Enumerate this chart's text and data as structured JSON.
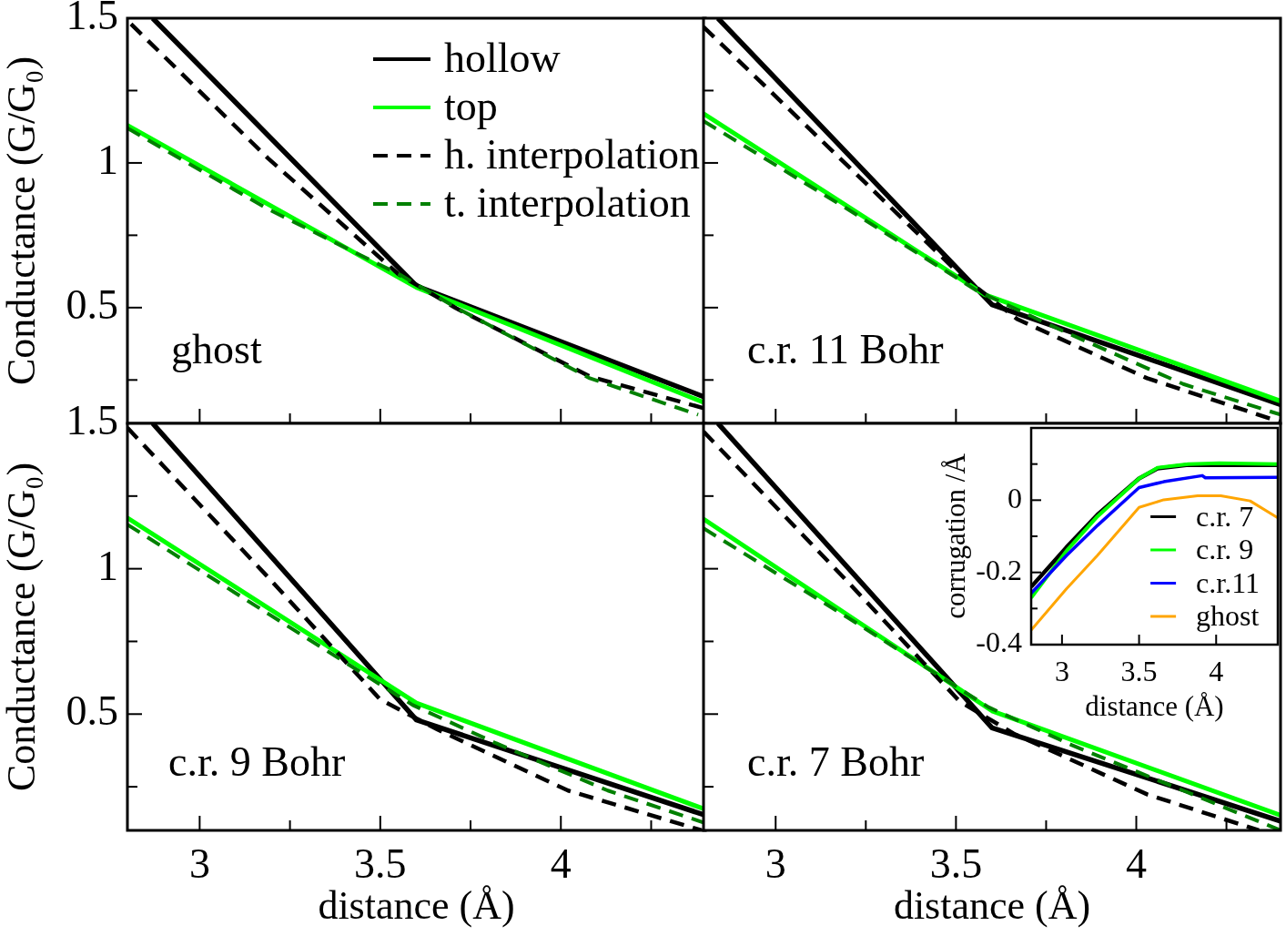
{
  "chart_data": [
    {
      "type": "line",
      "ylabel": "Conductance (G/G₀)",
      "xlim": [
        2.8,
        4.4
      ],
      "ylim": [
        0.1,
        1.5
      ],
      "xticks": [
        3,
        {
          "value": 3.25,
          "label": null
        },
        3.5,
        {
          "value": 3.75,
          "label": null
        },
        4,
        {
          "value": 4.25,
          "label": null
        }
      ],
      "yticks": [
        {
          "value": 0.25,
          "label": null
        },
        0.5,
        {
          "value": 0.75,
          "label": null
        },
        1,
        {
          "value": 1.25,
          "label": null
        },
        1.5
      ],
      "tick_labels": "y",
      "legend": "top right",
      "marker": "none",
      "annotations": [
        "ghost"
      ],
      "series": [
        {
          "name": "hollow",
          "color": "#000000",
          "line_style": "solid",
          "x": [
            2.87,
            3.6,
            4.4
          ],
          "values": [
            1.5,
            0.575,
            0.19
          ]
        },
        {
          "name": "top",
          "color": "#00ff00",
          "line_style": "solid",
          "x": [
            2.8,
            3.6,
            4.4
          ],
          "values": [
            1.13,
            0.57,
            0.17
          ]
        },
        {
          "name": "h. interpolation",
          "color": "#000000",
          "line_style": "dashed",
          "x": [
            2.81,
            3.19,
            3.55,
            3.71,
            4.08,
            4.4
          ],
          "values": [
            1.48,
            1.015,
            0.616,
            0.498,
            0.262,
            0.151
          ]
        },
        {
          "name": "t. interpolation",
          "color": "#008000",
          "line_style": "dashed",
          "x": [
            2.8,
            3.19,
            3.56,
            3.71,
            4.08,
            4.38
          ],
          "values": [
            1.12,
            0.84,
            0.61,
            0.5,
            0.256,
            0.13
          ]
        }
      ]
    },
    {
      "type": "line",
      "xlim": [
        2.8,
        4.4
      ],
      "ylim": [
        0.1,
        1.5
      ],
      "xticks": [
        3,
        {
          "value": 3.25,
          "label": null
        },
        3.5,
        {
          "value": 3.75,
          "label": null
        },
        4,
        {
          "value": 4.25,
          "label": null
        }
      ],
      "yticks": [
        {
          "value": 0.25,
          "label": null
        },
        0.5,
        {
          "value": 0.75,
          "label": null
        },
        1,
        {
          "value": 1.25,
          "label": null
        },
        1.5
      ],
      "tick_labels": false,
      "marker": "none",
      "annotations": [
        "c.r. 11 Bohr"
      ],
      "series": [
        {
          "color": "#000000",
          "line_style": "solid",
          "x": [
            2.84,
            3.6,
            4.4
          ],
          "values": [
            1.5,
            0.51,
            0.165
          ]
        },
        {
          "color": "#00ff00",
          "line_style": "solid",
          "x": [
            2.8,
            3.58,
            4.4
          ],
          "values": [
            1.17,
            0.545,
            0.177
          ]
        },
        {
          "color": "#000000",
          "line_style": "dashed",
          "x": [
            2.8,
            3.2,
            3.51,
            3.67,
            4.03,
            4.4
          ],
          "values": [
            1.47,
            0.99,
            0.616,
            0.46,
            0.256,
            0.105
          ]
        },
        {
          "color": "#008000",
          "line_style": "dashed",
          "x": [
            2.8,
            3.2,
            3.56,
            3.82,
            4.13,
            4.4
          ],
          "values": [
            1.145,
            0.84,
            0.557,
            0.406,
            0.236,
            0.13
          ]
        }
      ]
    },
    {
      "type": "line",
      "xlabel": "distance (Å)",
      "ylabel": "Conductance (G/G₀)",
      "xlim": [
        2.8,
        4.4
      ],
      "ylim": [
        0.1,
        1.5
      ],
      "xticks": [
        3,
        {
          "value": 3.25,
          "label": null
        },
        3.5,
        {
          "value": 3.75,
          "label": null
        },
        4,
        {
          "value": 4.25,
          "label": null
        }
      ],
      "yticks": [
        {
          "value": 0.25,
          "label": null
        },
        0.5,
        {
          "value": 0.75,
          "label": null
        },
        1,
        {
          "value": 1.25,
          "label": null
        },
        1.5
      ],
      "marker": "none",
      "annotations": [
        "c.r. 9 Bohr"
      ],
      "series": [
        {
          "color": "#000000",
          "line_style": "solid",
          "x": [
            2.87,
            3.6,
            4.4
          ],
          "values": [
            1.5,
            0.48,
            0.152
          ]
        },
        {
          "color": "#00ff00",
          "line_style": "solid",
          "x": [
            2.8,
            3.6,
            4.4
          ],
          "values": [
            1.175,
            0.538,
            0.172
          ]
        },
        {
          "color": "#000000",
          "line_style": "dashed",
          "x": [
            2.8,
            3.19,
            3.5,
            3.66,
            4.02,
            4.39
          ],
          "values": [
            1.485,
            0.97,
            0.55,
            0.446,
            0.237,
            0.1
          ]
        },
        {
          "color": "#008000",
          "line_style": "dashed",
          "x": [
            2.8,
            3.19,
            3.59,
            3.82,
            4.13,
            4.4
          ],
          "values": [
            1.152,
            0.845,
            0.531,
            0.4,
            0.237,
            0.125
          ]
        }
      ]
    },
    {
      "type": "line",
      "xlabel": "distance (Å)",
      "xlim": [
        2.8,
        4.4
      ],
      "ylim": [
        0.1,
        1.5
      ],
      "xticks": [
        3,
        {
          "value": 3.25,
          "label": null
        },
        3.5,
        {
          "value": 3.75,
          "label": null
        },
        4,
        {
          "value": 4.25,
          "label": null
        }
      ],
      "yticks": [
        {
          "value": 0.25,
          "label": null
        },
        0.5,
        {
          "value": 0.75,
          "label": null
        },
        1,
        {
          "value": 1.25,
          "label": null
        },
        1.5
      ],
      "tick_labels": "x",
      "marker": "none",
      "annotations": [
        "c.r. 7 Bohr"
      ],
      "series": [
        {
          "color": "#000000",
          "line_style": "solid",
          "x": [
            2.84,
            3.6,
            4.4
          ],
          "values": [
            1.5,
            0.453,
            0.132
          ]
        },
        {
          "color": "#00ff00",
          "line_style": "solid",
          "x": [
            2.8,
            3.6,
            4.4
          ],
          "values": [
            1.171,
            0.511,
            0.152
          ]
        },
        {
          "color": "#000000",
          "line_style": "dashed",
          "x": [
            2.8,
            3.2,
            3.51,
            3.66,
            4.03,
            4.34
          ],
          "values": [
            1.472,
            0.955,
            0.544,
            0.433,
            0.224,
            0.1
          ]
        },
        {
          "color": "#008000",
          "line_style": "dashed",
          "x": [
            2.8,
            3.2,
            3.59,
            3.82,
            4.13,
            4.4
          ],
          "values": [
            1.139,
            0.832,
            0.524,
            0.394,
            0.237,
            0.1
          ]
        }
      ]
    },
    {
      "type": "line",
      "xlabel": "distance (Å)",
      "ylabel": "corrugation /Å",
      "xlim": [
        2.8,
        4.4
      ],
      "ylim": [
        -0.4,
        0.2
      ],
      "xticks": [
        3,
        3.5,
        4
      ],
      "yticks": [
        -0.4,
        {
          "value": -0.3,
          "label": null
        },
        -0.2,
        {
          "value": -0.1,
          "label": null
        },
        0,
        {
          "value": 0.1,
          "label": null
        }
      ],
      "legend": "bottom right",
      "marker": "none",
      "series": [
        {
          "name": "c.r. 7",
          "color": "#000000",
          "line_style": "solid",
          "x": [
            2.8,
            3.03,
            3.23,
            3.5,
            3.62,
            3.82,
            4.4
          ],
          "values": [
            -0.24,
            -0.13,
            -0.04,
            0.06,
            0.088,
            0.098,
            0.097
          ]
        },
        {
          "name": "c.r. 9",
          "color": "#00ff00",
          "line_style": "solid",
          "x": [
            2.8,
            3.03,
            3.23,
            3.5,
            3.62,
            3.82,
            4.02,
            4.4
          ],
          "values": [
            -0.27,
            -0.14,
            -0.045,
            0.06,
            0.09,
            0.1,
            0.102,
            0.1
          ]
        },
        {
          "name": "c.r.11",
          "color": "#0000ff",
          "line_style": "solid",
          "x": [
            2.8,
            3.03,
            3.23,
            3.5,
            3.66,
            3.91,
            3.93,
            4.4
          ],
          "values": [
            -0.258,
            -0.153,
            -0.07,
            0.035,
            0.051,
            0.068,
            0.062,
            0.063
          ]
        },
        {
          "name": "ghost",
          "color": "#ffa500",
          "line_style": "solid",
          "x": [
            2.8,
            3.03,
            3.23,
            3.5,
            3.66,
            3.88,
            4.03,
            4.22,
            4.4
          ],
          "values": [
            -0.36,
            -0.245,
            -0.153,
            -0.02,
            0.001,
            0.012,
            0.012,
            -0.002,
            -0.049
          ]
        }
      ]
    }
  ]
}
